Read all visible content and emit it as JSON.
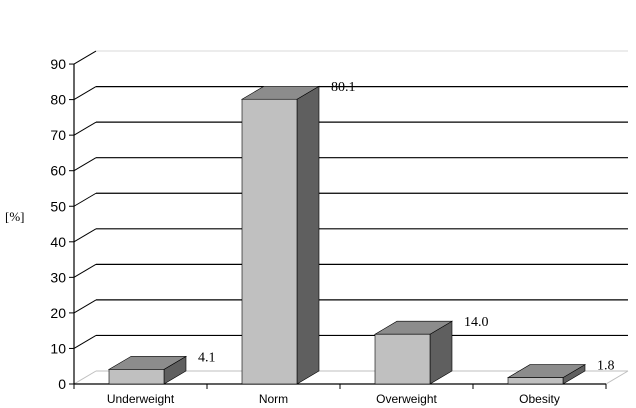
{
  "chart_data": {
    "type": "bar",
    "categories": [
      "Underweight",
      "Norm",
      "Overweight",
      "Obesity"
    ],
    "values": [
      4.1,
      80.1,
      14.0,
      1.8
    ],
    "value_labels": [
      "4.1",
      "80.1",
      "14.0",
      "1.8"
    ],
    "title": "",
    "xlabel": "",
    "ylabel": "[%]",
    "ylim": [
      0,
      90
    ],
    "yticks": [
      0,
      10,
      20,
      30,
      40,
      50,
      60,
      70,
      80,
      90
    ],
    "grid": true,
    "style": "3d-bar",
    "colors": {
      "bar_front": "#c0c0c0",
      "bar_top": "#8c8c8c",
      "bar_side": "#5f5f5f",
      "grid": "#000000",
      "back_wall_edge": "#d9d9d9",
      "floor_edge": "#bfbfbf"
    }
  }
}
